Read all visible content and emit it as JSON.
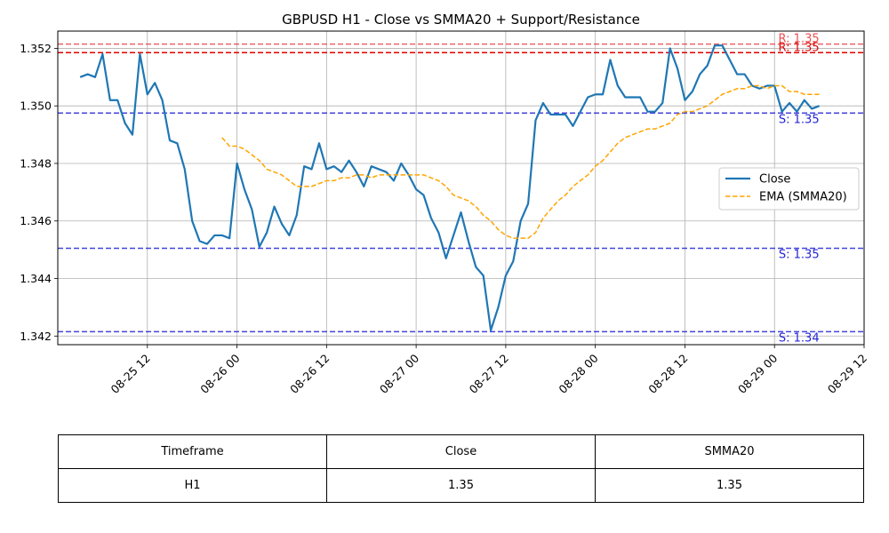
{
  "chart_data": {
    "type": "line",
    "title": "GBPUSD H1 - Close vs SMMA20 + Support/Resistance",
    "xlabel": "",
    "ylabel": "",
    "x_start": "2025-08-25 03:00",
    "x_step_hours": 1,
    "xlim": [
      "2025-08-25 00:00",
      "2025-08-29 12:00"
    ],
    "ylim": [
      1.3417,
      1.3526
    ],
    "x_tick_labels": [
      "08-25 12",
      "08-26 00",
      "08-26 12",
      "08-27 00",
      "08-27 12",
      "08-28 00",
      "08-28 12",
      "08-29 00",
      "08-29 12"
    ],
    "y_tick_labels": [
      "1.342",
      "1.344",
      "1.346",
      "1.348",
      "1.350",
      "1.352"
    ],
    "y_ticks": [
      1.342,
      1.344,
      1.346,
      1.348,
      1.35,
      1.352
    ],
    "grid": true,
    "legend_position": "right",
    "series": [
      {
        "name": "Close",
        "color": "#1f77b4",
        "style": "solid",
        "offset": 0,
        "values": [
          1.351,
          1.3511,
          1.351,
          1.3518,
          1.3502,
          1.3502,
          1.3494,
          1.349,
          1.3518,
          1.3504,
          1.3508,
          1.3502,
          1.3488,
          1.3487,
          1.3478,
          1.346,
          1.3453,
          1.3452,
          1.3455,
          1.3455,
          1.3454,
          1.348,
          1.3471,
          1.3464,
          1.3451,
          1.3456,
          1.3465,
          1.3459,
          1.3455,
          1.3462,
          1.3479,
          1.3478,
          1.3487,
          1.3478,
          1.3479,
          1.3477,
          1.3481,
          1.3477,
          1.3472,
          1.3479,
          1.3478,
          1.3477,
          1.3474,
          1.348,
          1.3476,
          1.3471,
          1.3469,
          1.3461,
          1.3456,
          1.3447,
          1.3455,
          1.3463,
          1.3453,
          1.3444,
          1.3441,
          1.3422,
          1.343,
          1.3441,
          1.3446,
          1.346,
          1.3466,
          1.3495,
          1.3501,
          1.3497,
          1.3497,
          1.3497,
          1.3493,
          1.3498,
          1.3503,
          1.3504,
          1.3504,
          1.3516,
          1.3507,
          1.3503,
          1.3503,
          1.3503,
          1.3498,
          1.3498,
          1.3501,
          1.352,
          1.3513,
          1.3502,
          1.3505,
          1.3511,
          1.3514,
          1.3521,
          1.3521,
          1.3516,
          1.3511,
          1.3511,
          1.3507,
          1.3506,
          1.3507,
          1.3507,
          1.3498,
          1.3501,
          1.3498,
          1.3502,
          1.3499,
          1.35
        ]
      },
      {
        "name": "EMA (SMMA20)",
        "color": "#ffa500",
        "style": "dashed",
        "offset": 19,
        "values": [
          1.3489,
          1.3486,
          1.3486,
          1.3485,
          1.3483,
          1.3481,
          1.3478,
          1.3477,
          1.3476,
          1.3474,
          1.3472,
          1.3472,
          1.3472,
          1.3473,
          1.3474,
          1.3474,
          1.3475,
          1.3475,
          1.3476,
          1.3476,
          1.3475,
          1.3476,
          1.3476,
          1.3476,
          1.3476,
          1.3476,
          1.3476,
          1.3476,
          1.3475,
          1.3474,
          1.3472,
          1.3469,
          1.3468,
          1.3467,
          1.3465,
          1.3462,
          1.346,
          1.3457,
          1.3455,
          1.3454,
          1.3454,
          1.3454,
          1.3456,
          1.3461,
          1.3464,
          1.3467,
          1.3469,
          1.3472,
          1.3474,
          1.3476,
          1.3479,
          1.3481,
          1.3484,
          1.3487,
          1.3489,
          1.349,
          1.3491,
          1.3492,
          1.3492,
          1.3493,
          1.3494,
          1.3497,
          1.3498,
          1.3498,
          1.3499,
          1.35,
          1.3502,
          1.3504,
          1.3505,
          1.3506,
          1.3506,
          1.3507,
          1.3507,
          1.3506,
          1.3507,
          1.3507,
          1.3505,
          1.3505,
          1.3504,
          1.3504,
          1.3504
        ]
      }
    ],
    "levels": [
      {
        "kind": "resistance",
        "value": 1.35215,
        "label": "R: 1.35",
        "color": "#e8474a",
        "opacity": 0.85
      },
      {
        "kind": "resistance",
        "value": 1.35185,
        "label": "R: 1.35",
        "color": "#dd0000",
        "opacity": 1.0
      },
      {
        "kind": "support",
        "value": 1.34975,
        "label": "S: 1.35",
        "color": "#2424d6",
        "opacity": 0.85
      },
      {
        "kind": "support",
        "value": 1.34505,
        "label": "S: 1.35",
        "color": "#2424d6",
        "opacity": 0.85
      },
      {
        "kind": "support",
        "value": 1.34215,
        "label": "S: 1.34",
        "color": "#2424d6",
        "opacity": 0.85
      }
    ]
  },
  "table": {
    "headers": [
      "Timeframe",
      "Close",
      "SMMA20"
    ],
    "rows": [
      [
        "H1",
        "1.35",
        "1.35"
      ]
    ]
  }
}
